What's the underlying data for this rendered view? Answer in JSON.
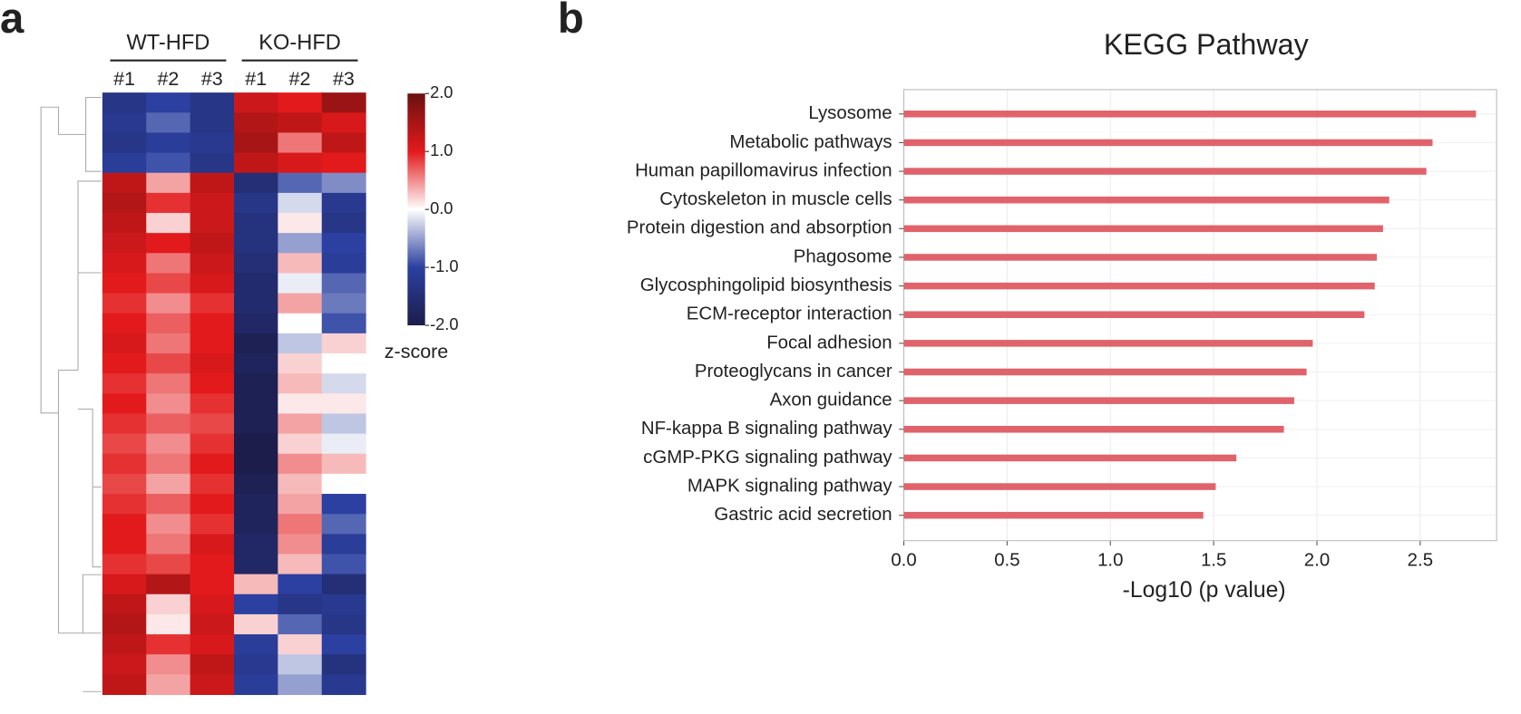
{
  "chart_data": [
    {
      "type": "heatmap",
      "panel": "a",
      "groups": [
        "WT-HFD",
        "KO-HFD"
      ],
      "columns": [
        "#1",
        "#2",
        "#3",
        "#1",
        "#2",
        "#3"
      ],
      "values": [
        [
          -1.3,
          -1.0,
          -1.3,
          1.2,
          1.0,
          1.6
        ],
        [
          -1.2,
          -0.8,
          -1.3,
          1.4,
          1.3,
          1.1
        ],
        [
          -1.3,
          -1.1,
          -1.2,
          1.5,
          0.6,
          1.3
        ],
        [
          -1.1,
          -0.9,
          -1.3,
          1.3,
          1.1,
          1.0
        ],
        [
          1.3,
          0.4,
          1.3,
          -1.5,
          -0.8,
          -0.6
        ],
        [
          1.4,
          0.9,
          1.2,
          -1.3,
          -0.2,
          -1.2
        ],
        [
          1.3,
          0.2,
          1.2,
          -1.4,
          0.1,
          -1.3
        ],
        [
          1.2,
          1.0,
          1.3,
          -1.4,
          -0.5,
          -1.0
        ],
        [
          1.1,
          0.6,
          1.2,
          -1.5,
          0.3,
          -1.1
        ],
        [
          1.0,
          0.8,
          1.1,
          -1.6,
          -0.1,
          -0.8
        ],
        [
          0.9,
          0.5,
          0.9,
          -1.6,
          0.4,
          -0.7
        ],
        [
          1.0,
          0.7,
          1.0,
          -1.7,
          0.0,
          -0.9
        ],
        [
          1.1,
          0.6,
          1.0,
          -1.9,
          -0.3,
          0.2
        ],
        [
          1.0,
          0.8,
          1.1,
          -1.8,
          0.2,
          0.0
        ],
        [
          0.9,
          0.6,
          1.0,
          -1.9,
          0.3,
          -0.2
        ],
        [
          1.0,
          0.5,
          0.9,
          -1.9,
          0.1,
          0.1
        ],
        [
          0.9,
          0.7,
          0.8,
          -1.9,
          0.4,
          -0.3
        ],
        [
          0.8,
          0.5,
          0.9,
          -2.0,
          0.2,
          -0.1
        ],
        [
          0.9,
          0.6,
          1.0,
          -2.0,
          0.5,
          0.3
        ],
        [
          0.8,
          0.4,
          0.9,
          -1.9,
          0.3,
          0.0
        ],
        [
          0.9,
          0.7,
          1.0,
          -1.8,
          0.4,
          -1.0
        ],
        [
          1.0,
          0.5,
          0.9,
          -1.8,
          0.6,
          -0.8
        ],
        [
          1.0,
          0.6,
          1.1,
          -1.7,
          0.5,
          -1.1
        ],
        [
          0.9,
          0.8,
          1.0,
          -1.7,
          0.3,
          -0.9
        ],
        [
          1.1,
          1.4,
          1.0,
          0.3,
          -1.0,
          -1.5
        ],
        [
          1.3,
          0.2,
          1.1,
          -1.0,
          -1.3,
          -1.2
        ],
        [
          1.4,
          0.1,
          1.2,
          0.2,
          -0.8,
          -1.3
        ],
        [
          1.3,
          0.9,
          1.1,
          -1.1,
          0.2,
          -1.0
        ],
        [
          1.2,
          0.5,
          1.3,
          -1.2,
          -0.3,
          -1.4
        ],
        [
          1.3,
          0.4,
          1.2,
          -1.1,
          -0.5,
          -1.2
        ]
      ],
      "colorscale": [
        {
          "value": -2,
          "color": "#1c1d4b"
        },
        {
          "value": -1,
          "color": "#2b40a0"
        },
        {
          "value": 0,
          "color": "#ffffff"
        },
        {
          "value": 1,
          "color": "#e31a1c"
        },
        {
          "value": 2,
          "color": "#6b1010"
        }
      ],
      "colorbar_label": "z-score",
      "zlim": [
        -2,
        2
      ],
      "zticks": [
        {
          "value": 2,
          "label": "2.0"
        },
        {
          "value": 1,
          "label": "1.0"
        },
        {
          "value": 0,
          "label": "0.0"
        },
        {
          "value": -1,
          "label": "-1.0"
        },
        {
          "value": -2,
          "label": "-2.0"
        }
      ]
    },
    {
      "type": "bar",
      "orientation": "horizontal",
      "panel": "b",
      "title": "KEGG Pathway",
      "x_label": "-Log10 (p value)",
      "categories": [
        "Lysosome",
        "Metabolic pathways",
        "Human papillomavirus infection",
        "Cytoskeleton in muscle cells",
        "Protein digestion and absorption",
        "Phagosome",
        "Glycosphingolipid biosynthesis",
        "ECM-receptor interaction",
        "Focal adhesion",
        "Proteoglycans in cancer",
        "Axon guidance",
        "NF-kappa B signaling pathway",
        "cGMP-PKG signaling pathway",
        "MAPK signaling pathway",
        "Gastric acid secretion"
      ],
      "values": [
        2.77,
        2.56,
        2.53,
        2.35,
        2.32,
        2.29,
        2.28,
        2.23,
        1.98,
        1.95,
        1.89,
        1.84,
        1.61,
        1.51,
        1.45
      ],
      "color": "#e0636b",
      "xlim": [
        0,
        2.87
      ],
      "xticks": [
        {
          "value": 0,
          "label": "0.0"
        },
        {
          "value": 0.5,
          "label": "0.5"
        },
        {
          "value": 1,
          "label": "1.0"
        },
        {
          "value": 1.5,
          "label": "1.5"
        },
        {
          "value": 2,
          "label": "2.0"
        },
        {
          "value": 2.5,
          "label": "2.5"
        }
      ],
      "grid": true
    }
  ]
}
